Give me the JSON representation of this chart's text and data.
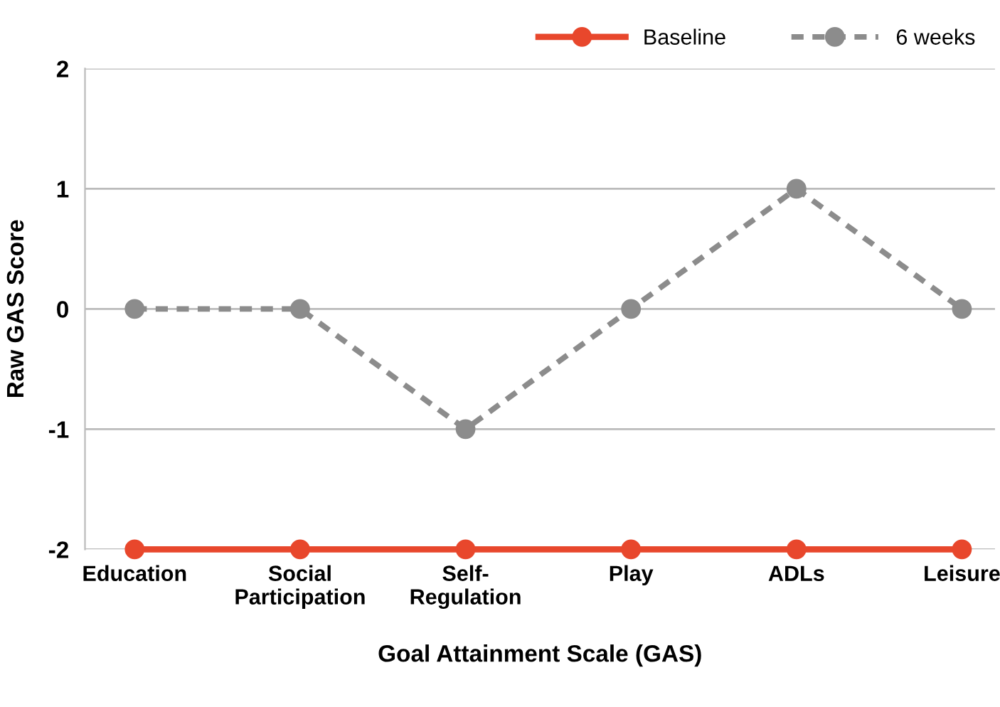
{
  "chart_data": {
    "type": "line",
    "xlabel": "Goal Attainment Scale (GAS)",
    "ylabel": "Raw GAS Score",
    "categories": [
      "Education",
      "Social\nParticipation",
      "Self-\nRegulation",
      "Play",
      "ADLs",
      "Leisure"
    ],
    "series": [
      {
        "name": "Baseline",
        "color": "#e8472c",
        "values": [
          -2,
          -2,
          -2,
          -2,
          -2,
          -2
        ],
        "line_style": "solid"
      },
      {
        "name": "6 weeks",
        "color": "#8c8c8c",
        "values": [
          0,
          0,
          -1,
          0,
          1,
          0
        ],
        "line_style": "dashed"
      }
    ],
    "ylim": [
      -2,
      2
    ],
    "yticks": [
      -2,
      -1,
      0,
      1,
      2
    ],
    "grid": "y",
    "legend": "top right",
    "marker": "circle"
  }
}
